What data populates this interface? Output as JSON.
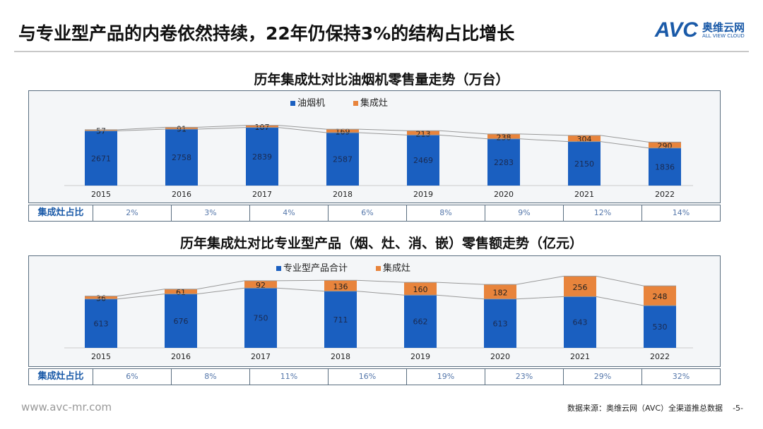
{
  "header": {
    "title": "与专业型产品的内卷依然持续，22年仍保持3%的结构占比增长",
    "logo_text": "AVC",
    "logo_cn": "奥维云网",
    "logo_en": "ALL VIEW CLOUD"
  },
  "chart_data": [
    {
      "type": "bar",
      "stacked": true,
      "title": "历年集成灶对比油烟机零售量走势（万台）",
      "categories": [
        "2015",
        "2016",
        "2017",
        "2018",
        "2019",
        "2020",
        "2021",
        "2022"
      ],
      "series": [
        {
          "name": "油烟机",
          "color": "#1a5fc0",
          "values": [
            2671,
            2758,
            2839,
            2587,
            2469,
            2283,
            2150,
            1836
          ]
        },
        {
          "name": "集成灶",
          "color": "#e8843c",
          "values": [
            57,
            91,
            107,
            169,
            213,
            238,
            304,
            290
          ]
        }
      ],
      "legend": "top-center",
      "ratio_label": "集成灶占比",
      "ratios": [
        "2%",
        "3%",
        "4%",
        "6%",
        "8%",
        "9%",
        "12%",
        "14%"
      ]
    },
    {
      "type": "bar",
      "stacked": true,
      "title": "历年集成灶对比专业型产品（烟、灶、消、嵌）零售额走势（亿元）",
      "categories": [
        "2015",
        "2016",
        "2017",
        "2018",
        "2019",
        "2020",
        "2021",
        "2022"
      ],
      "series": [
        {
          "name": "专业型产品合计",
          "color": "#1a5fc0",
          "values": [
            613,
            676,
            750,
            711,
            662,
            613,
            643,
            530
          ]
        },
        {
          "name": "集成灶",
          "color": "#e8843c",
          "values": [
            36,
            61,
            92,
            136,
            160,
            182,
            256,
            248
          ]
        }
      ],
      "legend": "top-center",
      "ratio_label": "集成灶占比",
      "ratios": [
        "6%",
        "8%",
        "11%",
        "16%",
        "19%",
        "23%",
        "29%",
        "32%"
      ]
    }
  ],
  "footer": {
    "url": "www.avc-mr.com",
    "source": "数据来源：奥维云网（AVC）全渠道推总数据",
    "page": "-5-"
  }
}
